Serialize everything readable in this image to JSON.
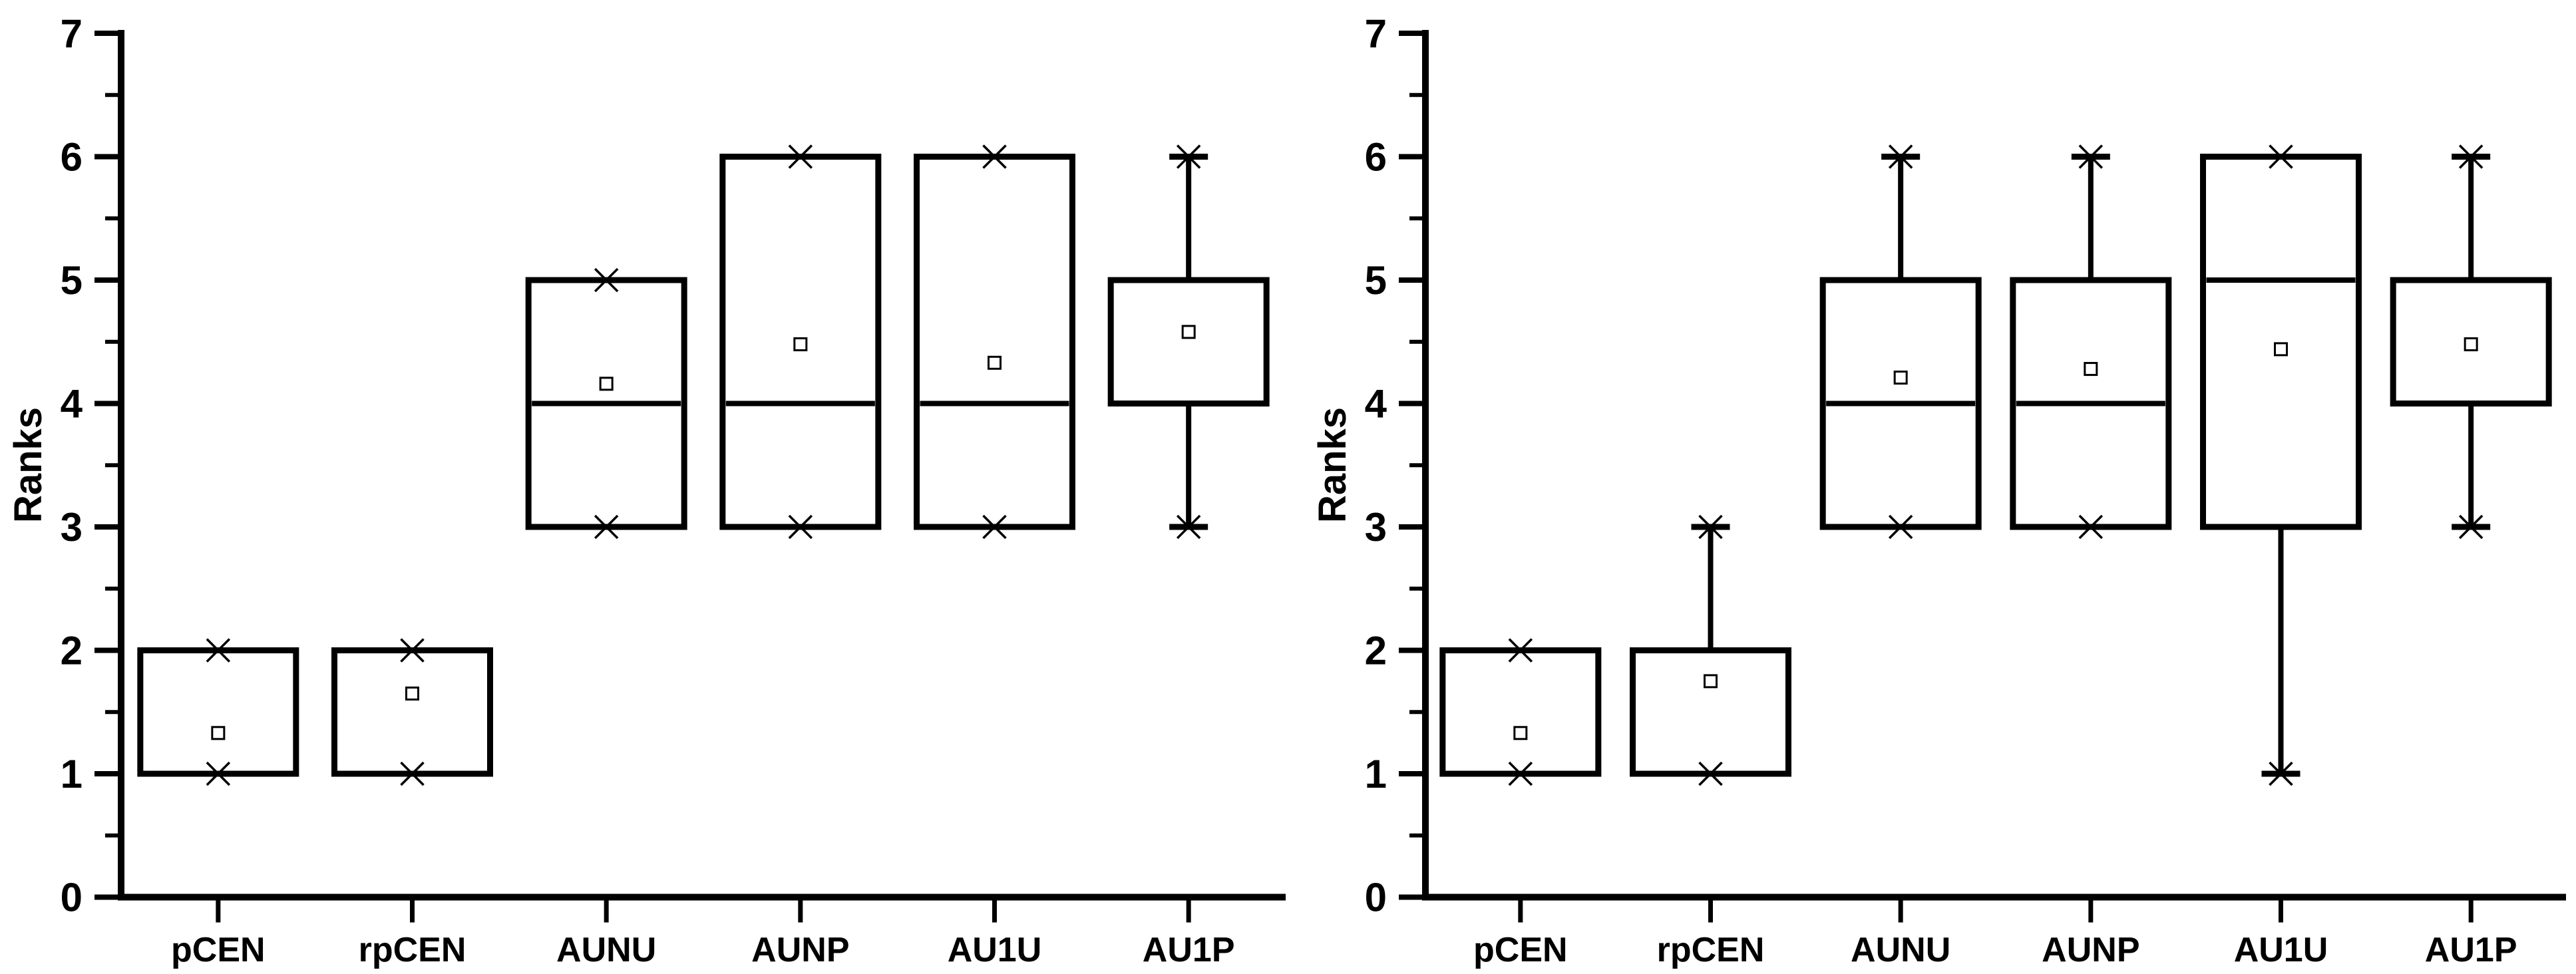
{
  "figure": {
    "background": "#ffffff",
    "foreground": "#000000",
    "description": "Two side-by-side box plots of ranks for six AUC-based measures"
  },
  "chart_data": [
    {
      "type": "box",
      "title": "",
      "xlabel": "",
      "ylabel": "Ranks",
      "ylim": [
        0,
        7
      ],
      "yticks": [
        0,
        1,
        2,
        3,
        4,
        5,
        6,
        7
      ],
      "minor_tick_step": 0.5,
      "grid": false,
      "legend": false,
      "marker_styles": {
        "mean": "open-square",
        "extremes": "x-cross"
      },
      "categories": [
        "pCEN",
        "rpCEN",
        "AUNU",
        "AUNP",
        "AU1U",
        "AU1P"
      ],
      "boxes": [
        {
          "category": "pCEN",
          "q1": 1,
          "q3": 2,
          "median": null,
          "whisker_low": 1,
          "whisker_high": 2,
          "mean": 1.33
        },
        {
          "category": "rpCEN",
          "q1": 1,
          "q3": 2,
          "median": null,
          "whisker_low": 1,
          "whisker_high": 2,
          "mean": 1.65
        },
        {
          "category": "AUNU",
          "q1": 3,
          "q3": 5,
          "median": 4,
          "whisker_low": 3,
          "whisker_high": 5,
          "mean": 4.16
        },
        {
          "category": "AUNP",
          "q1": 3,
          "q3": 6,
          "median": 4,
          "whisker_low": 3,
          "whisker_high": 6,
          "mean": 4.48
        },
        {
          "category": "AU1U",
          "q1": 3,
          "q3": 6,
          "median": 4,
          "whisker_low": 3,
          "whisker_high": 6,
          "mean": 4.33
        },
        {
          "category": "AU1P",
          "q1": 4,
          "q3": 5,
          "median": null,
          "whisker_low": 3,
          "whisker_high": 6,
          "mean": 4.58
        }
      ]
    },
    {
      "type": "box",
      "title": "",
      "xlabel": "",
      "ylabel": "Ranks",
      "ylim": [
        0,
        7
      ],
      "yticks": [
        0,
        1,
        2,
        3,
        4,
        5,
        6,
        7
      ],
      "minor_tick_step": 0.5,
      "grid": false,
      "legend": false,
      "marker_styles": {
        "mean": "open-square",
        "extremes": "x-cross"
      },
      "categories": [
        "pCEN",
        "rpCEN",
        "AUNU",
        "AUNP",
        "AU1U",
        "AU1P"
      ],
      "boxes": [
        {
          "category": "pCEN",
          "q1": 1,
          "q3": 2,
          "median": null,
          "whisker_low": 1,
          "whisker_high": 2,
          "mean": 1.33
        },
        {
          "category": "rpCEN",
          "q1": 1,
          "q3": 2,
          "median": null,
          "whisker_low": 1,
          "whisker_high": 3,
          "mean": 1.75
        },
        {
          "category": "AUNU",
          "q1": 3,
          "q3": 5,
          "median": 4,
          "whisker_low": 3,
          "whisker_high": 6,
          "mean": 4.21
        },
        {
          "category": "AUNP",
          "q1": 3,
          "q3": 5,
          "median": 4,
          "whisker_low": 3,
          "whisker_high": 6,
          "mean": 4.28
        },
        {
          "category": "AU1U",
          "q1": 3,
          "q3": 6,
          "median": 5,
          "whisker_low": 1,
          "whisker_high": 6,
          "mean": 4.44
        },
        {
          "category": "AU1P",
          "q1": 4,
          "q3": 5,
          "median": null,
          "whisker_low": 3,
          "whisker_high": 6,
          "mean": 4.48
        }
      ]
    }
  ]
}
